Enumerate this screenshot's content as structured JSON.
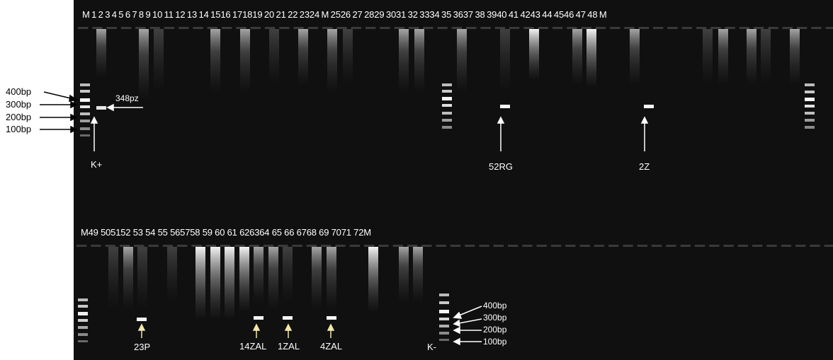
{
  "gel": {
    "background": "#0c0c0c",
    "band_color": "#f2f2f2",
    "smear_color": "#cfcfcf"
  },
  "top_row": {
    "lane_labels": "M 1  2  3  4  5  6  7  8  9 10 11 12 13 14 1516 171819 20 21 22 2324 M 2526 27 2829 3031 32 3334 35 3637 38 3940 41 4243 44 4546 47 48 M",
    "annotations": {
      "product_size": "348pz",
      "positive_control": "K+",
      "sample_a": "52RG",
      "sample_b": "2Z"
    }
  },
  "bottom_row": {
    "lane_labels": "M49 505152 53 54 55 565758 59 60 61 626364 65 66 6768 69 7071 72M",
    "annotations": {
      "sample_c": "23P",
      "sample_d": "14ZAL",
      "sample_e": "1ZAL",
      "sample_f": "4ZAL",
      "negative_control": "K-"
    }
  },
  "ladder_labels": {
    "bp400": "400bp",
    "bp300": "300bp",
    "bp200": "200bp",
    "bp100": "100bp"
  }
}
